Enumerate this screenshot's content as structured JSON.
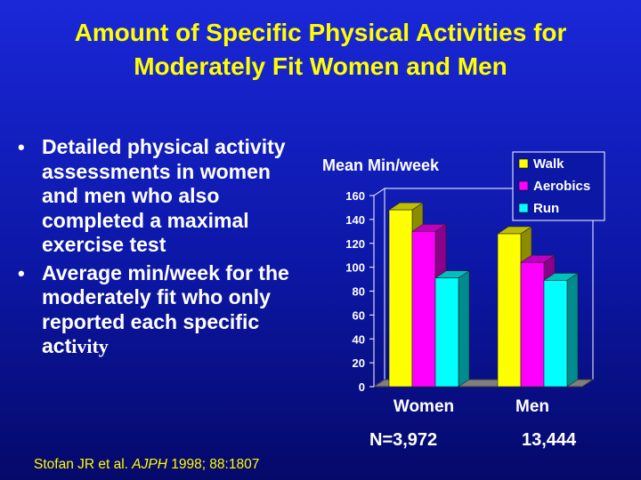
{
  "slide": {
    "title_line1": "Amount of Specific Physical Activities for",
    "title_line2": "Moderately Fit Women and Men",
    "bullets": [
      {
        "text": "Detailed physical activity assessments in women and men who also completed a maximal exercise test"
      },
      {
        "text_main": "Average min/week for the moderately fit who only reported each specific act",
        "text_tail": "ivity"
      }
    ],
    "sample_sizes": [
      "N=3,972",
      "13,444"
    ],
    "citation": {
      "authors": "Stofan JR et al. ",
      "journal": "AJPH",
      "details": " 1998; 88:1807"
    }
  },
  "colors": {
    "title": "#ffff00",
    "background": "#0c17a6",
    "walk": "#ffff00",
    "aerobics": "#ff00ff",
    "run": "#00ffff"
  },
  "chart_data": {
    "type": "bar",
    "title": "",
    "ylabel": "Mean Min/week",
    "xlabel": "",
    "categories": [
      "Women",
      "Men"
    ],
    "series": [
      {
        "name": "Walk",
        "values": [
          148,
          128
        ],
        "color": "#ffff00"
      },
      {
        "name": "Aerobics",
        "values": [
          130,
          104
        ],
        "color": "#ff00ff"
      },
      {
        "name": "Run",
        "values": [
          91,
          89
        ],
        "color": "#00ffff"
      }
    ],
    "ylim": [
      0,
      160
    ],
    "yticks": [
      0,
      20,
      40,
      60,
      80,
      100,
      120,
      140,
      160
    ],
    "grid": false,
    "legend_position": "top-right",
    "style": "3d"
  }
}
